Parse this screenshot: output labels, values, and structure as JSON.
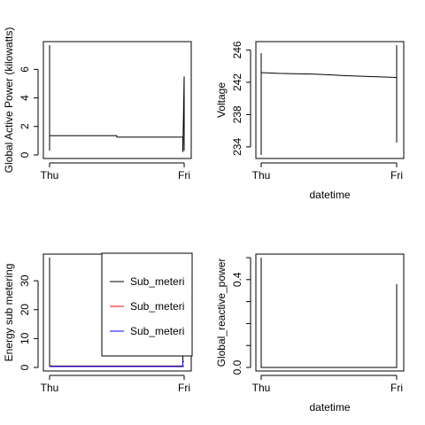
{
  "chart_data": [
    {
      "type": "line",
      "panel": "top-left",
      "xlabel": "",
      "ylabel": "Global Active Power (kilowatts)",
      "x_tick_labels": [
        "Thu",
        "Fri"
      ],
      "y_ticks": [
        0,
        2,
        4,
        6
      ],
      "ylim": [
        0,
        7.7
      ],
      "series": [
        {
          "values": [
            [
              0.0,
              7.7
            ],
            [
              0.0,
              0.3
            ],
            [
              0.0,
              1.35
            ],
            [
              0.5,
              1.35
            ],
            [
              0.5,
              1.25
            ],
            [
              0.99,
              1.25
            ],
            [
              0.99,
              0.2
            ],
            [
              1.0,
              5.5
            ],
            [
              1.0,
              0.3
            ]
          ]
        }
      ]
    },
    {
      "type": "line",
      "panel": "top-right",
      "xlabel": "datetime",
      "ylabel": "Voltage",
      "x_tick_labels": [
        "Thu",
        "Fri"
      ],
      "y_ticks": [
        234,
        238,
        242,
        246
      ],
      "ylim": [
        233.0,
        246.6
      ],
      "series": [
        {
          "values": [
            [
              0.0,
              245.6
            ],
            [
              0.0,
              233.0
            ],
            [
              0.0,
              243.2
            ],
            [
              0.13,
              243.1
            ],
            [
              0.4,
              243.0
            ],
            [
              0.65,
              242.8
            ],
            [
              1.0,
              242.6
            ],
            [
              1.0,
              246.6
            ],
            [
              1.0,
              234.5
            ]
          ]
        }
      ]
    },
    {
      "type": "line",
      "panel": "bottom-left",
      "xlabel": "",
      "ylabel": "Energy sub metering",
      "x_tick_labels": [
        "Thu",
        "Fri"
      ],
      "y_ticks": [
        0,
        10,
        20,
        30
      ],
      "ylim": [
        0,
        38
      ],
      "legend": {
        "placement": "top-right",
        "labels": [
          "Sub_meteri",
          "Sub_meteri",
          "Sub_meteri"
        ],
        "colors": [
          "#000000",
          "#ff0000",
          "#0000ff"
        ]
      },
      "series": [
        {
          "color": "#000000",
          "values": [
            [
              0.0,
              38
            ],
            [
              0.0,
              0.5
            ],
            [
              0.99,
              0.5
            ],
            [
              0.99,
              4.0
            ],
            [
              1.0,
              4.0
            ]
          ]
        },
        {
          "color": "#ff0000",
          "values": [
            [
              0.0,
              0.4
            ],
            [
              1.0,
              0.4
            ]
          ]
        },
        {
          "color": "#0000ff",
          "values": [
            [
              0.0,
              0.3
            ],
            [
              0.99,
              0.3
            ],
            [
              0.99,
              2.0
            ],
            [
              1.0,
              2.0
            ]
          ]
        }
      ]
    },
    {
      "type": "line",
      "panel": "bottom-right",
      "xlabel": "datetime",
      "ylabel": "Global_reactive_power",
      "x_tick_labels": [
        "Thu",
        "Fri"
      ],
      "y_ticks": [
        0.0,
        0.1,
        0.2,
        0.3,
        0.4,
        0.5
      ],
      "y_tick_labels": [
        "0.0",
        "",
        "",
        "",
        "0.4",
        ""
      ],
      "ylim": [
        0,
        0.5
      ],
      "series": [
        {
          "values": [
            [
              0.0,
              0.5
            ],
            [
              0.0,
              0.0
            ],
            [
              1.0,
              0.0
            ],
            [
              1.0,
              0.38
            ],
            [
              1.0,
              0.0
            ]
          ]
        }
      ]
    }
  ]
}
